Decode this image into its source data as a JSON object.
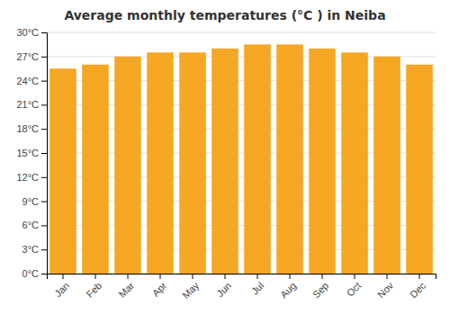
{
  "chart_data": {
    "type": "bar",
    "title": "Average monthly temperatures (°C ) in Neiba",
    "categories": [
      "Jan",
      "Feb",
      "Mar",
      "Apr",
      "May",
      "Jun",
      "Jul",
      "Aug",
      "Sep",
      "Oct",
      "Nov",
      "Dec"
    ],
    "values": [
      25.5,
      26.0,
      27.0,
      27.5,
      27.5,
      28.0,
      28.5,
      28.5,
      28.0,
      27.5,
      27.0,
      26.0
    ],
    "color": "#F5A623",
    "ylim": [
      0,
      30
    ],
    "yticks": [
      {
        "value": 0,
        "label": "0°C"
      },
      {
        "value": 3,
        "label": "3°C"
      },
      {
        "value": 6,
        "label": "6°C"
      },
      {
        "value": 9,
        "label": "9°C"
      },
      {
        "value": 12,
        "label": "12°C"
      },
      {
        "value": 15,
        "label": "15°C"
      },
      {
        "value": 18,
        "label": "18°C"
      },
      {
        "value": 21,
        "label": "21°C"
      },
      {
        "value": 24,
        "label": "24°C"
      },
      {
        "value": 27,
        "label": "27°C"
      },
      {
        "value": 30,
        "label": "30°C"
      }
    ],
    "grid": true
  }
}
